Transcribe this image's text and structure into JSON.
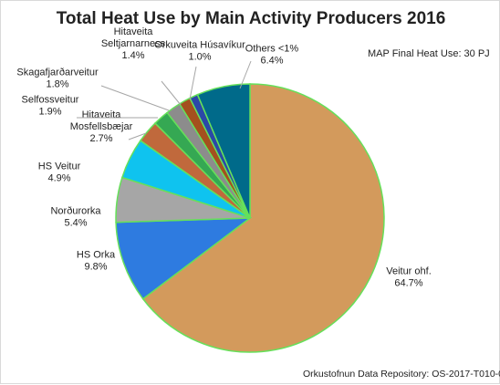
{
  "chart_data": {
    "type": "pie",
    "title": "Total Heat Use by Main Activity Producers 2016",
    "annotation": "MAP Final Heat Use: 30 PJ",
    "source": "Orkustofnun Data Repository: OS-2017-T010-02",
    "slices": [
      {
        "name": "Veitur ohf.",
        "value": 64.7,
        "label": "64.7%",
        "color": "#d39a5c"
      },
      {
        "name": "HS Orka",
        "value": 9.8,
        "label": "9.8%",
        "color": "#2e7be0"
      },
      {
        "name": "Norðurorka",
        "value": 5.4,
        "label": "5.4%",
        "color": "#a6a6a6"
      },
      {
        "name": "HS Veitur",
        "value": 4.9,
        "label": "4.9%",
        "color": "#0fc3ef"
      },
      {
        "name": "Hitaveita Mosfellsbæjar",
        "value": 2.7,
        "label": "2.7%",
        "color": "#c0693c"
      },
      {
        "name": "Selfossveitur",
        "value": 1.9,
        "label": "1.9%",
        "color": "#35a853"
      },
      {
        "name": "Skagafjarðarveitur",
        "value": 1.8,
        "label": "1.8%",
        "color": "#8c8c8c"
      },
      {
        "name": "Hitaveita Seltjarnarness",
        "value": 1.4,
        "label": "1.4%",
        "color": "#a4501e"
      },
      {
        "name": "Orkuveita Húsavíkur",
        "value": 1.0,
        "label": "1.0%",
        "color": "#2b48a8"
      },
      {
        "name": "Others <1%",
        "value": 6.4,
        "label": "6.4%",
        "color": "#006a8a"
      }
    ],
    "legend": "none"
  }
}
